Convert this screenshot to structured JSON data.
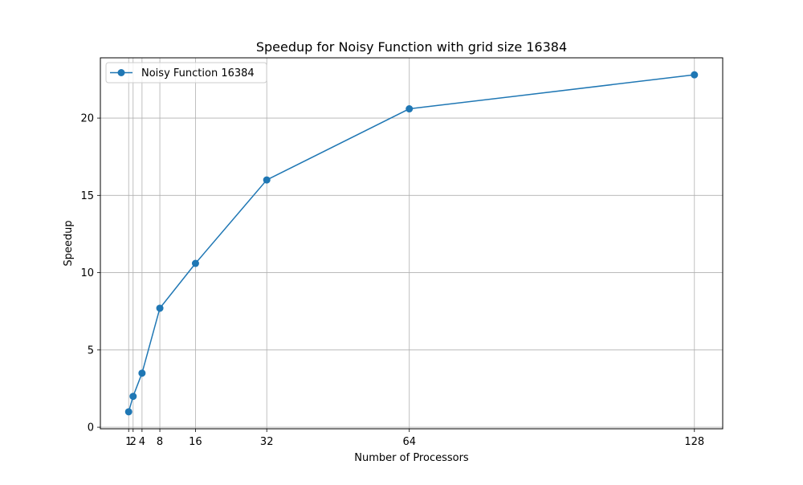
{
  "chart_data": {
    "type": "line",
    "title": "Speedup for Noisy Function with grid size 16384",
    "xlabel": "Number of Processors",
    "ylabel": "Speedup",
    "x": [
      1,
      2,
      4,
      8,
      16,
      32,
      64,
      128
    ],
    "xticks": [
      1,
      2,
      4,
      8,
      16,
      32,
      64,
      128
    ],
    "yticks": [
      0,
      5,
      10,
      15,
      20
    ],
    "xlim": [
      -5.35,
      134.35
    ],
    "ylim": [
      -0.1,
      23.9
    ],
    "grid": true,
    "legend_position": "top-left",
    "series": [
      {
        "name": "Noisy Function 16384",
        "color": "#1f77b4",
        "marker": "circle",
        "values": [
          1.0,
          2.0,
          3.5,
          7.7,
          10.6,
          16.0,
          20.6,
          22.8
        ]
      }
    ]
  }
}
